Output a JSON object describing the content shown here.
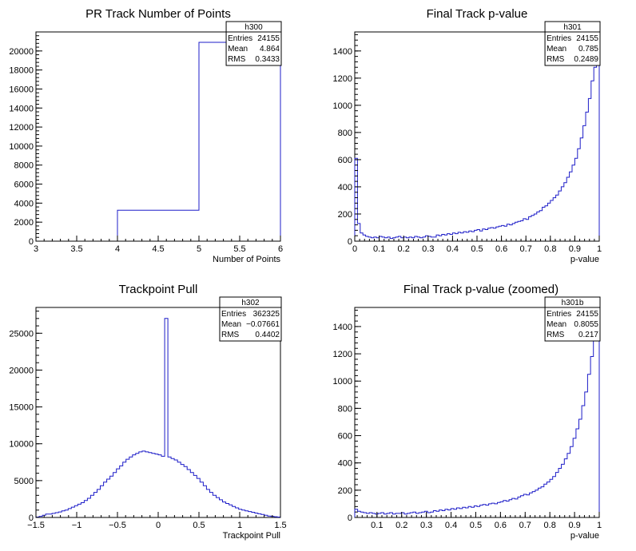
{
  "chart_data": [
    {
      "type": "bar",
      "title": "PR Track Number of Points",
      "xlabel": "Number of Points",
      "ylabel": "",
      "xlim": [
        3,
        6
      ],
      "ylim": [
        0,
        22000
      ],
      "x_ticks": [
        3,
        3.5,
        4,
        4.5,
        5,
        5.5,
        6
      ],
      "x_tick_labels": [
        "3",
        "3.5",
        "4",
        "4.5",
        "5",
        "5.5",
        "6"
      ],
      "y_ticks": [
        0,
        2000,
        4000,
        6000,
        8000,
        10000,
        12000,
        14000,
        16000,
        18000,
        20000
      ],
      "y_tick_labels": [
        "0",
        "2000",
        "4000",
        "6000",
        "8000",
        "10000",
        "12000",
        "14000",
        "16000",
        "18000",
        "20000"
      ],
      "grid": false,
      "legend_position": "top-right",
      "bin_edges": [
        4,
        5,
        6
      ],
      "values": [
        3250,
        20905
      ],
      "color": "#1c1cc8",
      "stats": {
        "name": "h300",
        "rows": [
          {
            "label": "Entries",
            "value": "24155"
          },
          {
            "label": "Mean",
            "value": "4.864"
          },
          {
            "label": "RMS",
            "value": "0.3433"
          }
        ]
      }
    },
    {
      "type": "bar",
      "title": "Final Track p-value",
      "xlabel": "p-value",
      "ylabel": "",
      "xlim": [
        0,
        1
      ],
      "ylim": [
        0,
        1540
      ],
      "x_ticks": [
        0,
        0.1,
        0.2,
        0.3,
        0.4,
        0.5,
        0.6,
        0.7,
        0.8,
        0.9,
        1
      ],
      "x_tick_labels": [
        "0",
        "0.1",
        "0.2",
        "0.3",
        "0.4",
        "0.5",
        "0.6",
        "0.7",
        "0.8",
        "0.9",
        "1"
      ],
      "y_ticks": [
        0,
        200,
        400,
        600,
        800,
        1000,
        1200,
        1400
      ],
      "y_tick_labels": [
        "0",
        "200",
        "400",
        "600",
        "800",
        "1000",
        "1200",
        "1400"
      ],
      "grid": false,
      "legend_position": "top-right",
      "bin_edges_range": [
        0,
        1
      ],
      "values": [
        610,
        130,
        60,
        45,
        35,
        30,
        25,
        30,
        25,
        35,
        30,
        25,
        30,
        20,
        25,
        30,
        35,
        25,
        30,
        25,
        30,
        25,
        35,
        30,
        25,
        30,
        40,
        35,
        30,
        30,
        45,
        40,
        50,
        45,
        55,
        50,
        60,
        55,
        65,
        60,
        70,
        65,
        75,
        70,
        80,
        85,
        75,
        90,
        85,
        95,
        100,
        95,
        105,
        110,
        115,
        110,
        125,
        120,
        130,
        140,
        145,
        150,
        165,
        160,
        180,
        190,
        200,
        215,
        225,
        250,
        260,
        280,
        300,
        320,
        340,
        370,
        400,
        430,
        470,
        510,
        560,
        610,
        680,
        760,
        850,
        950,
        1050,
        1180,
        1280,
        1420
      ],
      "color": "#1c1cc8",
      "stats": {
        "name": "h301",
        "rows": [
          {
            "label": "Entries",
            "value": "24155"
          },
          {
            "label": "Mean",
            "value": "0.785"
          },
          {
            "label": "RMS",
            "value": "0.2489"
          }
        ]
      }
    },
    {
      "type": "bar",
      "title": "Trackpoint Pull",
      "xlabel": "Trackpoint Pull",
      "ylabel": "",
      "xlim": [
        -1.5,
        1.5
      ],
      "ylim": [
        0,
        28500
      ],
      "x_ticks": [
        -1.5,
        -1,
        -0.5,
        0,
        0.5,
        1,
        1.5
      ],
      "x_tick_labels": [
        "−1.5",
        "−1",
        "−0.5",
        "0",
        "0.5",
        "1",
        "1.5"
      ],
      "y_ticks": [
        0,
        5000,
        10000,
        15000,
        20000,
        25000
      ],
      "y_tick_labels": [
        "0",
        "5000",
        "10000",
        "15000",
        "20000",
        "25000"
      ],
      "grid": false,
      "legend_position": "top-right",
      "bin_edges_range": [
        -1.5,
        1.5
      ],
      "values": [
        50,
        150,
        300,
        450,
        450,
        550,
        650,
        750,
        900,
        1000,
        1200,
        1400,
        1600,
        1800,
        2000,
        2300,
        2600,
        3000,
        3400,
        3800,
        4300,
        4800,
        5200,
        5600,
        6100,
        6600,
        7000,
        7500,
        7900,
        8200,
        8500,
        8700,
        8900,
        9000,
        8900,
        8800,
        8700,
        8600,
        8500,
        8300,
        27000,
        8200,
        8000,
        7800,
        7500,
        7200,
        6900,
        6500,
        6100,
        5700,
        5300,
        4800,
        4300,
        3800,
        3400,
        3000,
        2700,
        2400,
        2100,
        1900,
        1700,
        1500,
        1300,
        1100,
        1000,
        900,
        800,
        700,
        600,
        500,
        400,
        300,
        200,
        150,
        100,
        50
      ],
      "color": "#1c1cc8",
      "stats": {
        "name": "h302",
        "rows": [
          {
            "label": "Entries",
            "value": "362325"
          },
          {
            "label": "Mean",
            "value": "−0.07661"
          },
          {
            "label": "RMS",
            "value": "0.4402"
          }
        ]
      }
    },
    {
      "type": "bar",
      "title": "Final Track p-value (zoomed)",
      "xlabel": "p-value",
      "ylabel": "",
      "xlim": [
        0.01,
        1
      ],
      "ylim": [
        0,
        1540
      ],
      "x_ticks": [
        0.1,
        0.2,
        0.3,
        0.4,
        0.5,
        0.6,
        0.7,
        0.8,
        0.9,
        1
      ],
      "x_tick_labels": [
        "0.1",
        "0.2",
        "0.3",
        "0.4",
        "0.5",
        "0.6",
        "0.7",
        "0.8",
        "0.9",
        "1"
      ],
      "y_ticks": [
        0,
        200,
        400,
        600,
        800,
        1000,
        1200,
        1400
      ],
      "y_tick_labels": [
        "0",
        "200",
        "400",
        "600",
        "800",
        "1000",
        "1200",
        "1400"
      ],
      "grid": false,
      "legend_position": "top-right",
      "bin_edges_range": [
        0.01,
        1
      ],
      "values": [
        60,
        45,
        40,
        35,
        30,
        35,
        30,
        25,
        30,
        35,
        25,
        30,
        35,
        25,
        30,
        30,
        35,
        25,
        30,
        35,
        40,
        30,
        35,
        40,
        45,
        35,
        40,
        50,
        45,
        55,
        50,
        60,
        55,
        65,
        60,
        70,
        65,
        75,
        70,
        80,
        75,
        85,
        80,
        90,
        95,
        90,
        100,
        105,
        100,
        110,
        115,
        125,
        120,
        130,
        140,
        135,
        150,
        160,
        170,
        165,
        180,
        190,
        200,
        215,
        225,
        245,
        260,
        280,
        300,
        330,
        360,
        390,
        430,
        470,
        520,
        580,
        650,
        720,
        820,
        920,
        1050,
        1180,
        1300,
        1420
      ],
      "color": "#1c1cc8",
      "stats": {
        "name": "h301b",
        "rows": [
          {
            "label": "Entries",
            "value": "24155"
          },
          {
            "label": "Mean",
            "value": "0.8055"
          },
          {
            "label": "RMS",
            "value": "0.217"
          }
        ]
      }
    }
  ]
}
